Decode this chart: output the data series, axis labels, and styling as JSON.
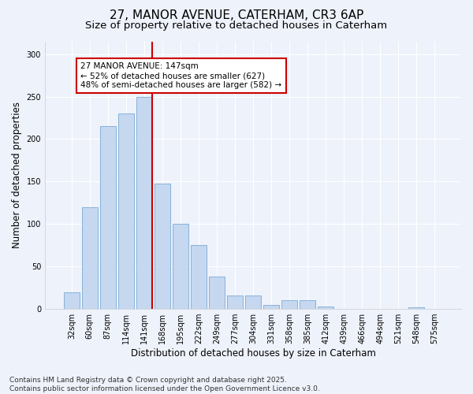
{
  "title_line1": "27, MANOR AVENUE, CATERHAM, CR3 6AP",
  "title_line2": "Size of property relative to detached houses in Caterham",
  "xlabel": "Distribution of detached houses by size in Caterham",
  "ylabel": "Number of detached properties",
  "bar_color": "#c5d8f0",
  "bar_edge_color": "#7aaad4",
  "background_color": "#eef2fb",
  "categories": [
    "32sqm",
    "60sqm",
    "87sqm",
    "114sqm",
    "141sqm",
    "168sqm",
    "195sqm",
    "222sqm",
    "249sqm",
    "277sqm",
    "304sqm",
    "331sqm",
    "358sqm",
    "385sqm",
    "412sqm",
    "439sqm",
    "466sqm",
    "494sqm",
    "521sqm",
    "548sqm",
    "575sqm"
  ],
  "values": [
    20,
    120,
    215,
    230,
    250,
    148,
    100,
    75,
    38,
    16,
    16,
    5,
    10,
    10,
    3,
    0,
    0,
    0,
    0,
    2,
    0
  ],
  "vline_color": "#cc0000",
  "vline_x": 4.43,
  "annotation_text": "27 MANOR AVENUE: 147sqm\n← 52% of detached houses are smaller (627)\n48% of semi-detached houses are larger (582) →",
  "annotation_box_facecolor": "#ffffff",
  "annotation_box_edgecolor": "#cc0000",
  "ylim": [
    0,
    315
  ],
  "yticks": [
    0,
    50,
    100,
    150,
    200,
    250,
    300
  ],
  "footer_line1": "Contains HM Land Registry data © Crown copyright and database right 2025.",
  "footer_line2": "Contains public sector information licensed under the Open Government Licence v3.0.",
  "title_fontsize": 11,
  "subtitle_fontsize": 9.5,
  "tick_fontsize": 7,
  "ylabel_fontsize": 8.5,
  "xlabel_fontsize": 8.5,
  "annot_fontsize": 7.5,
  "footer_fontsize": 6.5,
  "grid_color": "#ffffff",
  "spine_color": "#cccccc"
}
